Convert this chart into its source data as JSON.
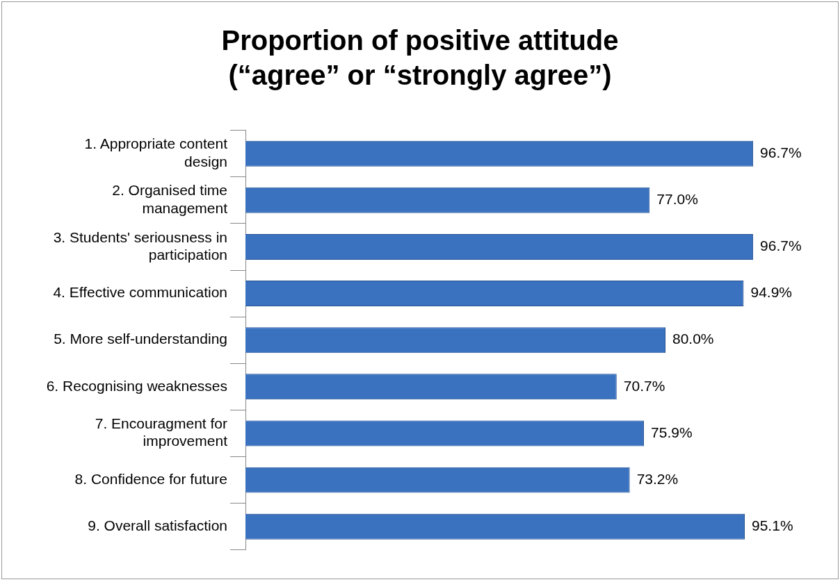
{
  "chart_data": {
    "type": "bar",
    "orientation": "horizontal",
    "title": "Proportion of positive attitude (“agree” or “strongly agree”)",
    "categories": [
      "1. Appropriate content design",
      "2. Organised time management",
      "3. Students' seriousness in participation",
      "4. Effective communication",
      "5. More self-understanding",
      "6. Recognising weaknesses",
      "7. Encouragment for improvement",
      "8. Confidence for future",
      "9. Overall satisfaction"
    ],
    "values": [
      96.7,
      77.0,
      96.7,
      94.9,
      80.0,
      70.7,
      75.9,
      73.2,
      95.1
    ],
    "value_labels": [
      "96.7%",
      "77.0%",
      "96.7%",
      "94.9%",
      "80.0%",
      "70.7%",
      "75.9%",
      "73.2%",
      "95.1%"
    ],
    "color": "#3a72bf",
    "tick_labels": "y",
    "legend": false
  }
}
